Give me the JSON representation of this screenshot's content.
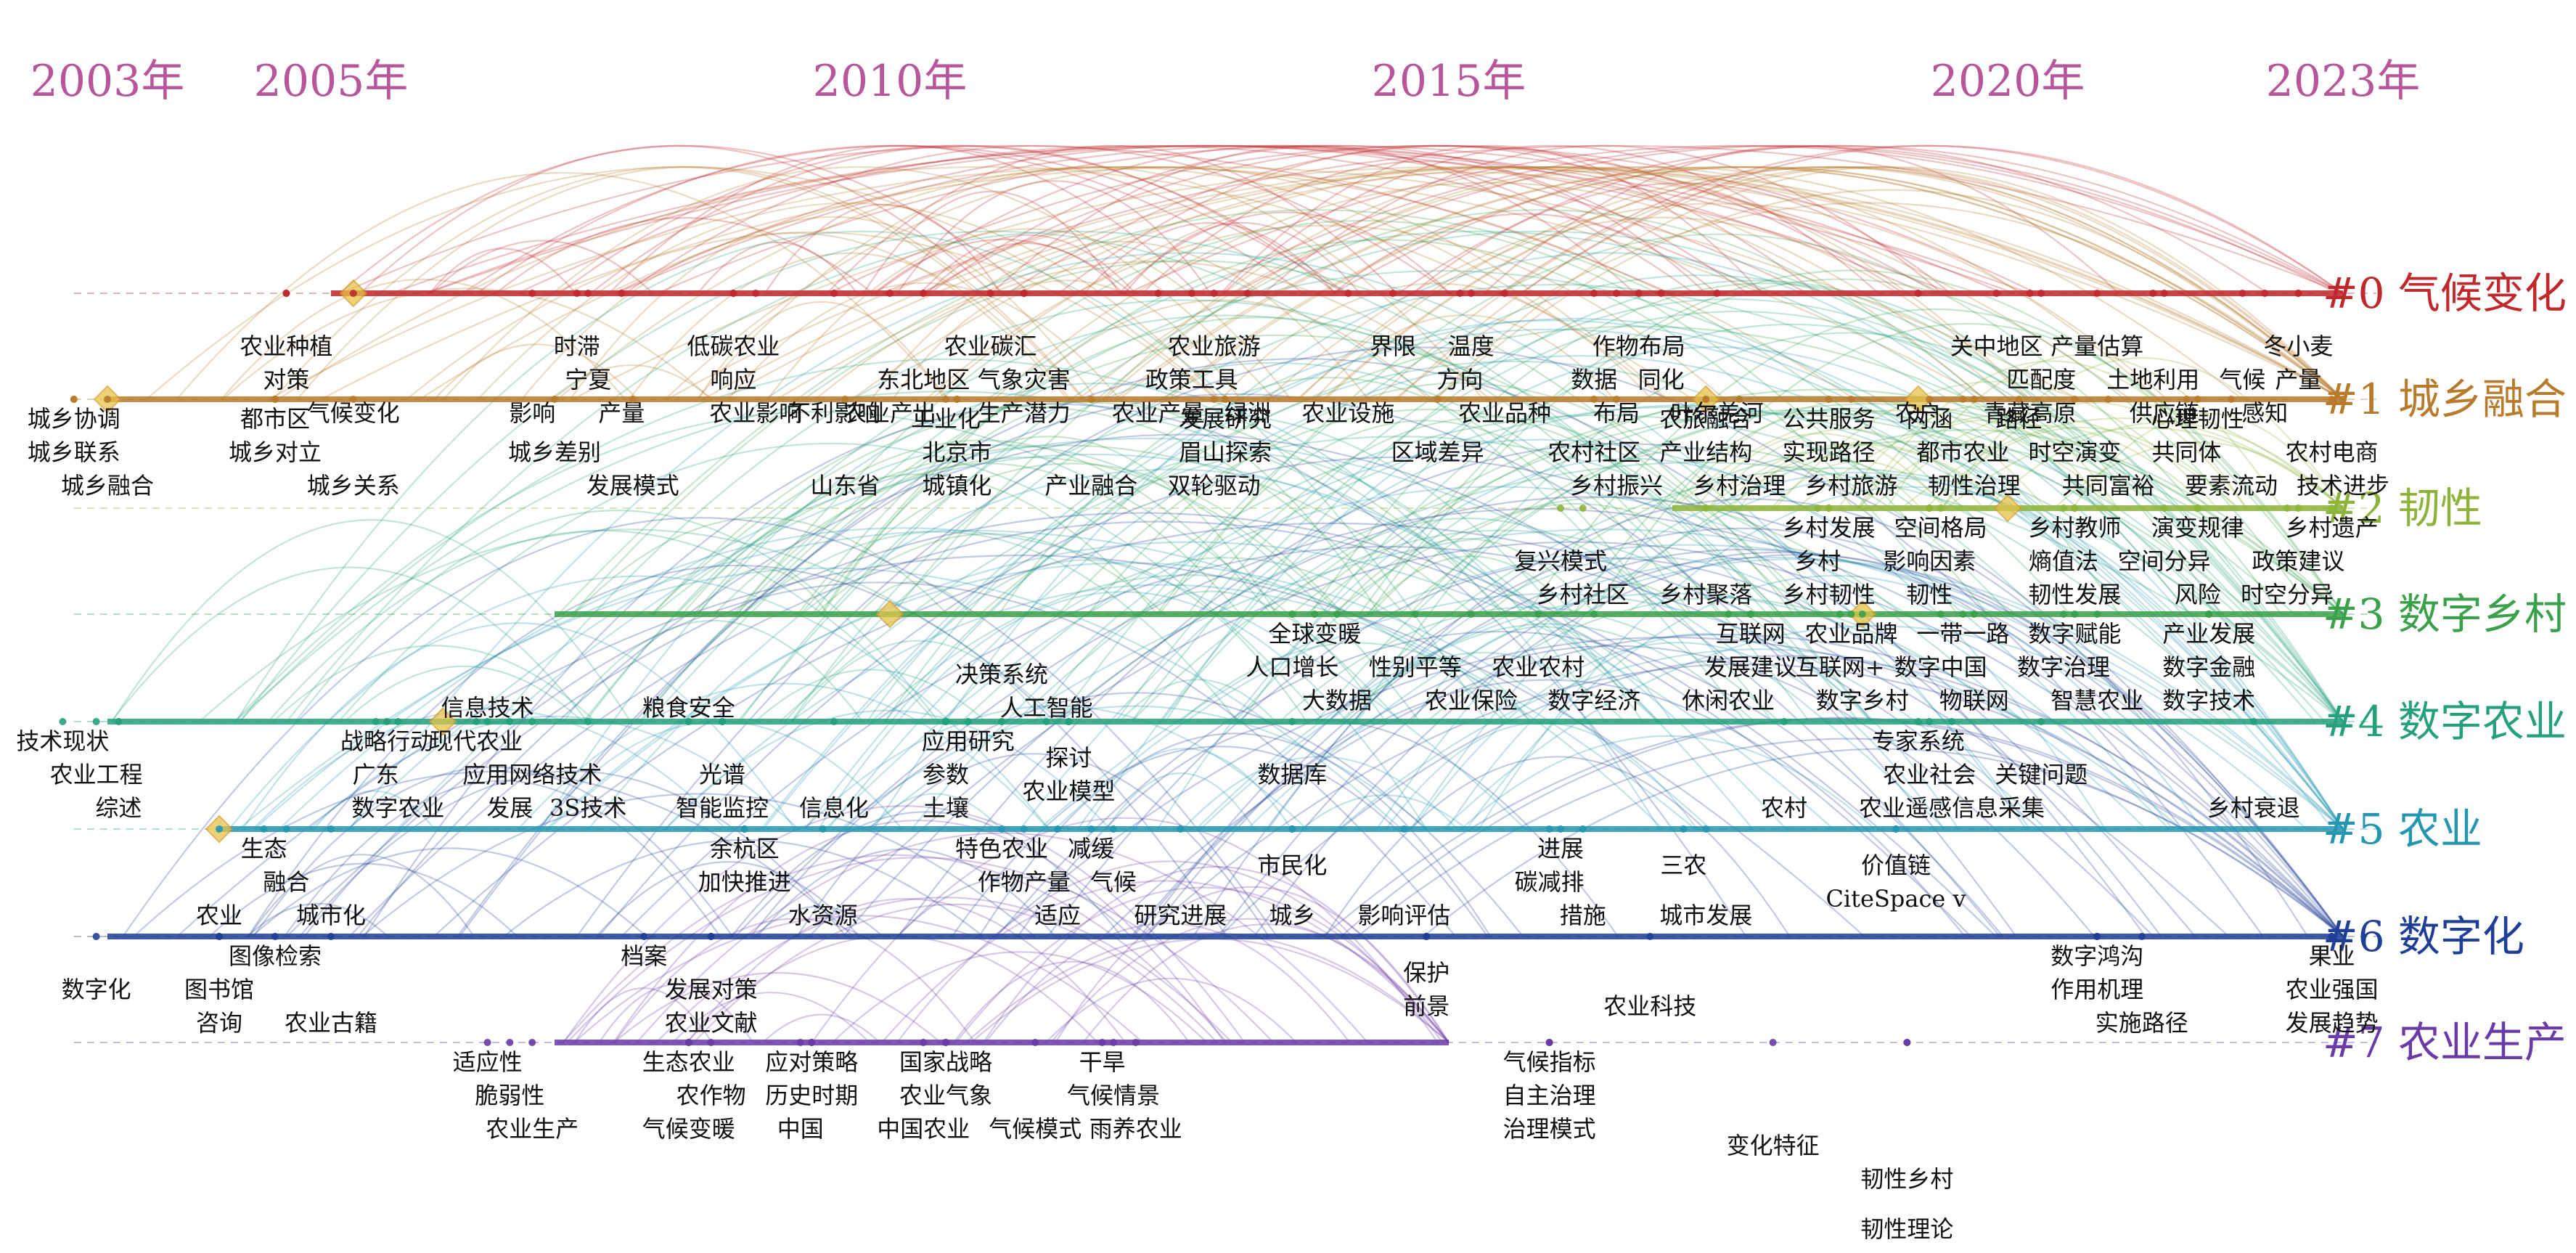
{
  "years": [
    {
      "label": "2003年",
      "year": 2003
    },
    {
      "label": "2005年",
      "year": 2005
    },
    {
      "label": "2010年",
      "year": 2010
    },
    {
      "label": "2015年",
      "year": 2015
    },
    {
      "label": "2020年",
      "year": 2020
    },
    {
      "label": "2023年",
      "year": 2023
    }
  ],
  "clusters": [
    {
      "label": "#0 气候变化",
      "color": "#c0282c",
      "start": 2005,
      "end": 2023
    },
    {
      "label": "#1 城乡融合",
      "color": "#b87a2b",
      "start": 2003,
      "end": 2023
    },
    {
      "label": "#2 韧性",
      "color": "#8db33a",
      "start": 2017,
      "end": 2023
    },
    {
      "label": "#3 数字乡村",
      "color": "#3aa04a",
      "start": 2007,
      "end": 2023
    },
    {
      "label": "#4 数字农业",
      "color": "#24a07c",
      "start": 2003,
      "end": 2023
    },
    {
      "label": "#5 农业",
      "color": "#2596b0",
      "start": 2004,
      "end": 2023
    },
    {
      "label": "#6 数字化",
      "color": "#1f3f96",
      "start": 2003,
      "end": 2023
    },
    {
      "label": "#7 农业生产",
      "color": "#6a3aa6",
      "start": 2007,
      "end": 2015
    }
  ],
  "keywords": [
    {
      "t": "农业种植",
      "c": 0,
      "y": 2004.6,
      "d": 1
    },
    {
      "t": "对策",
      "c": 0,
      "y": 2004.6,
      "d": 2
    },
    {
      "t": "气候变化",
      "c": 0,
      "y": 2005.2,
      "d": 3
    },
    {
      "t": "不利影响",
      "c": 0,
      "y": 2009.5,
      "d": 3
    },
    {
      "t": "时滞",
      "c": 0,
      "y": 2007.2,
      "d": 1
    },
    {
      "t": "宁夏",
      "c": 0,
      "y": 2007.3,
      "d": 2
    },
    {
      "t": "影响",
      "c": 0,
      "y": 2006.8,
      "d": 3
    },
    {
      "t": "产量",
      "c": 0,
      "y": 2007.6,
      "d": 3
    },
    {
      "t": "低碳农业",
      "c": 0,
      "y": 2008.6,
      "d": 1
    },
    {
      "t": "响应",
      "c": 0,
      "y": 2008.6,
      "d": 2
    },
    {
      "t": "农业影响",
      "c": 0,
      "y": 2008.8,
      "d": 3
    },
    {
      "t": "农业碳汇",
      "c": 0,
      "y": 2010.9,
      "d": 1
    },
    {
      "t": "东北地区",
      "c": 0,
      "y": 2010.3,
      "d": 2
    },
    {
      "t": "气象灾害",
      "c": 0,
      "y": 2011.2,
      "d": 2
    },
    {
      "t": "农业产出",
      "c": 0,
      "y": 2010.0,
      "d": 3
    },
    {
      "t": "生产潜力",
      "c": 0,
      "y": 2011.2,
      "d": 3
    },
    {
      "t": "农业旅游",
      "c": 0,
      "y": 2012.9,
      "d": 1
    },
    {
      "t": "政策工具",
      "c": 0,
      "y": 2012.7,
      "d": 2
    },
    {
      "t": "农业产量",
      "c": 0,
      "y": 2012.4,
      "d": 3
    },
    {
      "t": "绿洲",
      "c": 0,
      "y": 2013.2,
      "d": 3
    },
    {
      "t": "界限",
      "c": 0,
      "y": 2014.5,
      "d": 1
    },
    {
      "t": "温度",
      "c": 0,
      "y": 2015.2,
      "d": 1
    },
    {
      "t": "方向",
      "c": 0,
      "y": 2015.1,
      "d": 2
    },
    {
      "t": "农业设施",
      "c": 0,
      "y": 2014.1,
      "d": 3
    },
    {
      "t": "农业品种",
      "c": 0,
      "y": 2015.5,
      "d": 3
    },
    {
      "t": "作物布局",
      "c": 0,
      "y": 2016.7,
      "d": 1
    },
    {
      "t": "数据",
      "c": 0,
      "y": 2016.3,
      "d": 2
    },
    {
      "t": "同化",
      "c": 0,
      "y": 2016.9,
      "d": 2
    },
    {
      "t": "布局",
      "c": 0,
      "y": 2016.5,
      "d": 3
    },
    {
      "t": "叶尔羌河",
      "c": 0,
      "y": 2017.4,
      "d": 3
    },
    {
      "t": "关中地区",
      "c": 0,
      "y": 2019.9,
      "d": 1
    },
    {
      "t": "产量估算",
      "c": 0,
      "y": 2020.8,
      "d": 1
    },
    {
      "t": "匹配度",
      "c": 0,
      "y": 2020.3,
      "d": 2
    },
    {
      "t": "土地利用",
      "c": 0,
      "y": 2021.3,
      "d": 2
    },
    {
      "t": "气候",
      "c": 0,
      "y": 2022.1,
      "d": 2
    },
    {
      "t": "产量",
      "c": 0,
      "y": 2022.6,
      "d": 2
    },
    {
      "t": "冬小麦",
      "c": 0,
      "y": 2022.6,
      "d": 1
    },
    {
      "t": "农户",
      "c": 0,
      "y": 2019.2,
      "d": 3
    },
    {
      "t": "青藏高原",
      "c": 0,
      "y": 2020.2,
      "d": 3
    },
    {
      "t": "供应链",
      "c": 0,
      "y": 2021.4,
      "d": 3
    },
    {
      "t": "感知",
      "c": 0,
      "y": 2022.3,
      "d": 3
    },
    {
      "t": "城乡协调",
      "c": 1,
      "y": 2002.7,
      "d": 0
    },
    {
      "t": "城乡联系",
      "c": 1,
      "y": 2002.7,
      "d": 1
    },
    {
      "t": "城乡融合",
      "c": 1,
      "y": 2003.0,
      "d": 2
    },
    {
      "t": "都市区",
      "c": 1,
      "y": 2004.5,
      "d": 0
    },
    {
      "t": "城乡对立",
      "c": 1,
      "y": 2004.5,
      "d": 1
    },
    {
      "t": "城乡关系",
      "c": 1,
      "y": 2005.2,
      "d": 2
    },
    {
      "t": "城乡差别",
      "c": 1,
      "y": 2007.0,
      "d": 1
    },
    {
      "t": "发展模式",
      "c": 1,
      "y": 2007.7,
      "d": 2
    },
    {
      "t": "工业化",
      "c": 1,
      "y": 2010.5,
      "d": 0
    },
    {
      "t": "北京市",
      "c": 1,
      "y": 2010.6,
      "d": 1
    },
    {
      "t": "山东省",
      "c": 1,
      "y": 2009.6,
      "d": 2
    },
    {
      "t": "城镇化",
      "c": 1,
      "y": 2010.6,
      "d": 2
    },
    {
      "t": "产业融合",
      "c": 1,
      "y": 2011.8,
      "d": 2
    },
    {
      "t": "发展研究",
      "c": 1,
      "y": 2013.0,
      "d": 0
    },
    {
      "t": "眉山探索",
      "c": 1,
      "y": 2013.0,
      "d": 1
    },
    {
      "t": "双轮驱动",
      "c": 1,
      "y": 2012.9,
      "d": 2
    },
    {
      "t": "区域差异",
      "c": 1,
      "y": 2014.9,
      "d": 1
    },
    {
      "t": "农旅融合",
      "c": 1,
      "y": 2017.3,
      "d": 0
    },
    {
      "t": "公共服务",
      "c": 1,
      "y": 2018.4,
      "d": 0
    },
    {
      "t": "内涵",
      "c": 1,
      "y": 2019.3,
      "d": 0
    },
    {
      "t": "路径",
      "c": 1,
      "y": 2020.1,
      "d": 0
    },
    {
      "t": "心理韧性",
      "c": 1,
      "y": 2021.7,
      "d": 0
    },
    {
      "t": "农村社区",
      "c": 1,
      "y": 2016.3,
      "d": 1
    },
    {
      "t": "产业结构",
      "c": 1,
      "y": 2017.3,
      "d": 1
    },
    {
      "t": "实现路径",
      "c": 1,
      "y": 2018.4,
      "d": 1
    },
    {
      "t": "都市农业",
      "c": 1,
      "y": 2019.6,
      "d": 1
    },
    {
      "t": "时空演变",
      "c": 1,
      "y": 2020.6,
      "d": 1
    },
    {
      "t": "共同体",
      "c": 1,
      "y": 2021.6,
      "d": 1
    },
    {
      "t": "农村电商",
      "c": 1,
      "y": 2022.9,
      "d": 1
    },
    {
      "t": "乡村振兴",
      "c": 1,
      "y": 2016.5,
      "d": 2
    },
    {
      "t": "乡村治理",
      "c": 1,
      "y": 2017.6,
      "d": 2
    },
    {
      "t": "乡村旅游",
      "c": 1,
      "y": 2018.6,
      "d": 2
    },
    {
      "t": "韧性治理",
      "c": 1,
      "y": 2019.7,
      "d": 2
    },
    {
      "t": "共同富裕",
      "c": 1,
      "y": 2020.9,
      "d": 2
    },
    {
      "t": "要素流动",
      "c": 1,
      "y": 2022.0,
      "d": 2
    },
    {
      "t": "技术进步",
      "c": 1,
      "y": 2023.0,
      "d": 2
    },
    {
      "t": "复兴模式",
      "c": 2,
      "y": 2016.0,
      "d": 1
    },
    {
      "t": "乡村发展",
      "c": 2,
      "y": 2018.4,
      "d": 0
    },
    {
      "t": "空间格局",
      "c": 2,
      "y": 2019.4,
      "d": 0
    },
    {
      "t": "乡村教师",
      "c": 2,
      "y": 2020.6,
      "d": 0
    },
    {
      "t": "演变规律",
      "c": 2,
      "y": 2021.7,
      "d": 0
    },
    {
      "t": "乡村遗产",
      "c": 2,
      "y": 2022.9,
      "d": 0
    },
    {
      "t": "乡村",
      "c": 2,
      "y": 2018.3,
      "d": 1
    },
    {
      "t": "影响因素",
      "c": 2,
      "y": 2019.3,
      "d": 1
    },
    {
      "t": "熵值法",
      "c": 2,
      "y": 2020.5,
      "d": 1
    },
    {
      "t": "空间分异",
      "c": 2,
      "y": 2021.4,
      "d": 1
    },
    {
      "t": "政策建议",
      "c": 2,
      "y": 2022.6,
      "d": 1
    },
    {
      "t": "乡村社区",
      "c": 2,
      "y": 2016.2,
      "d": 2
    },
    {
      "t": "乡村聚落",
      "c": 2,
      "y": 2017.3,
      "d": 2
    },
    {
      "t": "乡村韧性",
      "c": 2,
      "y": 2018.4,
      "d": 2
    },
    {
      "t": "韧性",
      "c": 2,
      "y": 2019.3,
      "d": 2
    },
    {
      "t": "韧性发展",
      "c": 2,
      "y": 2020.6,
      "d": 2
    },
    {
      "t": "风险",
      "c": 2,
      "y": 2021.7,
      "d": 2
    },
    {
      "t": "时空分异",
      "c": 2,
      "y": 2022.5,
      "d": 2
    },
    {
      "t": "全球变暖",
      "c": 3,
      "y": 2013.8,
      "d": 0
    },
    {
      "t": "人口增长",
      "c": 3,
      "y": 2013.6,
      "d": 1
    },
    {
      "t": "性别平等",
      "c": 3,
      "y": 2014.7,
      "d": 1
    },
    {
      "t": "农业农村",
      "c": 3,
      "y": 2015.8,
      "d": 1
    },
    {
      "t": "大数据",
      "c": 3,
      "y": 2014.0,
      "d": 2
    },
    {
      "t": "农业保险",
      "c": 3,
      "y": 2015.2,
      "d": 2
    },
    {
      "t": "数字经济",
      "c": 3,
      "y": 2016.3,
      "d": 2
    },
    {
      "t": "互联网",
      "c": 3,
      "y": 2017.7,
      "d": 0
    },
    {
      "t": "农业品牌",
      "c": 3,
      "y": 2018.6,
      "d": 0
    },
    {
      "t": "一带一路",
      "c": 3,
      "y": 2019.6,
      "d": 0
    },
    {
      "t": "数字赋能",
      "c": 3,
      "y": 2020.6,
      "d": 0
    },
    {
      "t": "产业发展",
      "c": 3,
      "y": 2021.8,
      "d": 0
    },
    {
      "t": "发展建议",
      "c": 3,
      "y": 2017.7,
      "d": 1
    },
    {
      "t": "互联网+",
      "c": 3,
      "y": 2018.5,
      "d": 1
    },
    {
      "t": "数字中国",
      "c": 3,
      "y": 2019.4,
      "d": 1
    },
    {
      "t": "数字治理",
      "c": 3,
      "y": 2020.5,
      "d": 1
    },
    {
      "t": "数字金融",
      "c": 3,
      "y": 2021.8,
      "d": 1
    },
    {
      "t": "休闲农业",
      "c": 3,
      "y": 2017.5,
      "d": 2
    },
    {
      "t": "数字乡村",
      "c": 3,
      "y": 2018.7,
      "d": 2
    },
    {
      "t": "物联网",
      "c": 3,
      "y": 2019.7,
      "d": 2
    },
    {
      "t": "智慧农业",
      "c": 3,
      "y": 2020.8,
      "d": 2
    },
    {
      "t": "数字技术",
      "c": 3,
      "y": 2021.8,
      "d": 2
    },
    {
      "t": "信息技术",
      "c": 4,
      "y": 2006.4,
      "d": -1
    },
    {
      "t": "粮食安全",
      "c": 4,
      "y": 2008.2,
      "d": -1
    },
    {
      "t": "决策系统",
      "c": 4,
      "y": 2011.0,
      "d": -2
    },
    {
      "t": "人工智能",
      "c": 4,
      "y": 2011.4,
      "d": -1
    },
    {
      "t": "技术现状",
      "c": 4,
      "y": 2002.6,
      "d": 0
    },
    {
      "t": "农业工程",
      "c": 4,
      "y": 2002.9,
      "d": 1
    },
    {
      "t": "综述",
      "c": 4,
      "y": 2003.1,
      "d": 2
    },
    {
      "t": "战略行动",
      "c": 4,
      "y": 2005.5,
      "d": 0
    },
    {
      "t": "现代农业",
      "c": 4,
      "y": 2006.3,
      "d": 0
    },
    {
      "t": "广东",
      "c": 4,
      "y": 2005.4,
      "d": 1
    },
    {
      "t": "应用网络技术",
      "c": 4,
      "y": 2006.8,
      "d": 1
    },
    {
      "t": "数字农业",
      "c": 4,
      "y": 2005.6,
      "d": 2
    },
    {
      "t": "发展",
      "c": 4,
      "y": 2006.6,
      "d": 2
    },
    {
      "t": "3S技术",
      "c": 4,
      "y": 2007.3,
      "d": 2
    },
    {
      "t": "光谱",
      "c": 4,
      "y": 2008.5,
      "d": 1
    },
    {
      "t": "智能监控",
      "c": 4,
      "y": 2008.5,
      "d": 2
    },
    {
      "t": "信息化",
      "c": 4,
      "y": 2009.5,
      "d": 2
    },
    {
      "t": "应用研究",
      "c": 4,
      "y": 2010.7,
      "d": 0
    },
    {
      "t": "参数",
      "c": 4,
      "y": 2010.5,
      "d": 1
    },
    {
      "t": "土壤",
      "c": 4,
      "y": 2010.5,
      "d": 2
    },
    {
      "t": "探讨",
      "c": 4,
      "y": 2011.6,
      "d": 0.5
    },
    {
      "t": "农业模型",
      "c": 4,
      "y": 2011.6,
      "d": 1.5
    },
    {
      "t": "数据库",
      "c": 4,
      "y": 2013.6,
      "d": 1
    },
    {
      "t": "专家系统",
      "c": 4,
      "y": 2019.2,
      "d": 0
    },
    {
      "t": "农业社会",
      "c": 4,
      "y": 2019.3,
      "d": 1
    },
    {
      "t": "关键问题",
      "c": 4,
      "y": 2020.3,
      "d": 1
    },
    {
      "t": "农村",
      "c": 4,
      "y": 2018.0,
      "d": 2
    },
    {
      "t": "农业遥感信息采集",
      "c": 4,
      "y": 2019.5,
      "d": 2
    },
    {
      "t": "乡村衰退",
      "c": 4,
      "y": 2022.2,
      "d": 2
    },
    {
      "t": "生态",
      "c": 5,
      "y": 2004.4,
      "d": 0
    },
    {
      "t": "融合",
      "c": 5,
      "y": 2004.6,
      "d": 1
    },
    {
      "t": "农业",
      "c": 5,
      "y": 2004.0,
      "d": 2
    },
    {
      "t": "城市化",
      "c": 5,
      "y": 2005.0,
      "d": 2
    },
    {
      "t": "余杭区",
      "c": 5,
      "y": 2008.7,
      "d": 0
    },
    {
      "t": "加快推进",
      "c": 5,
      "y": 2008.7,
      "d": 1
    },
    {
      "t": "水资源",
      "c": 5,
      "y": 2009.4,
      "d": 2
    },
    {
      "t": "特色农业",
      "c": 5,
      "y": 2011.0,
      "d": 0
    },
    {
      "t": "减缓",
      "c": 5,
      "y": 2011.8,
      "d": 0
    },
    {
      "t": "作物产量",
      "c": 5,
      "y": 2011.2,
      "d": 1
    },
    {
      "t": "气候",
      "c": 5,
      "y": 2012.0,
      "d": 1
    },
    {
      "t": "适应",
      "c": 5,
      "y": 2011.5,
      "d": 2
    },
    {
      "t": "研究进展",
      "c": 5,
      "y": 2012.6,
      "d": 2
    },
    {
      "t": "市民化",
      "c": 5,
      "y": 2013.6,
      "d": 0.5
    },
    {
      "t": "城乡",
      "c": 5,
      "y": 2013.6,
      "d": 2
    },
    {
      "t": "影响评估",
      "c": 5,
      "y": 2014.6,
      "d": 2
    },
    {
      "t": "进展",
      "c": 5,
      "y": 2016.0,
      "d": 0
    },
    {
      "t": "碳减排",
      "c": 5,
      "y": 2015.9,
      "d": 1
    },
    {
      "t": "措施",
      "c": 5,
      "y": 2016.2,
      "d": 2
    },
    {
      "t": "三农",
      "c": 5,
      "y": 2017.1,
      "d": 0.5
    },
    {
      "t": "城市发展",
      "c": 5,
      "y": 2017.3,
      "d": 2
    },
    {
      "t": "价值链",
      "c": 5,
      "y": 2019.0,
      "d": 0.5
    },
    {
      "t": "CiteSpace v",
      "c": 5,
      "y": 2019.0,
      "d": 1.5
    },
    {
      "t": "数字化",
      "c": 6,
      "y": 2002.9,
      "d": 1
    },
    {
      "t": "图像检索",
      "c": 6,
      "y": 2004.5,
      "d": 0
    },
    {
      "t": "图书馆",
      "c": 6,
      "y": 2004.0,
      "d": 1
    },
    {
      "t": "咨询",
      "c": 6,
      "y": 2004.0,
      "d": 2
    },
    {
      "t": "农业古籍",
      "c": 6,
      "y": 2005.0,
      "d": 2
    },
    {
      "t": "档案",
      "c": 6,
      "y": 2007.8,
      "d": 0
    },
    {
      "t": "发展对策",
      "c": 6,
      "y": 2008.4,
      "d": 1
    },
    {
      "t": "农业文献",
      "c": 6,
      "y": 2008.4,
      "d": 2
    },
    {
      "t": "保护",
      "c": 6,
      "y": 2014.8,
      "d": 0.5
    },
    {
      "t": "前景",
      "c": 6,
      "y": 2014.8,
      "d": 1.5
    },
    {
      "t": "农业科技",
      "c": 6,
      "y": 2016.8,
      "d": 1.5
    },
    {
      "t": "数字鸿沟",
      "c": 6,
      "y": 2020.8,
      "d": 0
    },
    {
      "t": "作用机理",
      "c": 6,
      "y": 2020.8,
      "d": 1
    },
    {
      "t": "实施路径",
      "c": 6,
      "y": 2021.2,
      "d": 2
    },
    {
      "t": "果业",
      "c": 6,
      "y": 2022.9,
      "d": 0
    },
    {
      "t": "农业强国",
      "c": 6,
      "y": 2022.9,
      "d": 1
    },
    {
      "t": "发展趋势",
      "c": 6,
      "y": 2022.9,
      "d": 2
    },
    {
      "t": "适应性",
      "c": 7,
      "y": 2006.4,
      "d": 0
    },
    {
      "t": "脆弱性",
      "c": 7,
      "y": 2006.6,
      "d": 1
    },
    {
      "t": "农业生产",
      "c": 7,
      "y": 2006.8,
      "d": 2
    },
    {
      "t": "生态农业",
      "c": 7,
      "y": 2008.2,
      "d": 0
    },
    {
      "t": "农作物",
      "c": 7,
      "y": 2008.4,
      "d": 1
    },
    {
      "t": "气候变暖",
      "c": 7,
      "y": 2008.2,
      "d": 2
    },
    {
      "t": "应对策略",
      "c": 7,
      "y": 2009.3,
      "d": 0
    },
    {
      "t": "历史时期",
      "c": 7,
      "y": 2009.3,
      "d": 1
    },
    {
      "t": "中国",
      "c": 7,
      "y": 2009.2,
      "d": 2
    },
    {
      "t": "国家战略",
      "c": 7,
      "y": 2010.5,
      "d": 0
    },
    {
      "t": "农业气象",
      "c": 7,
      "y": 2010.5,
      "d": 1
    },
    {
      "t": "中国农业",
      "c": 7,
      "y": 2010.3,
      "d": 2
    },
    {
      "t": "气候模式",
      "c": 7,
      "y": 2011.3,
      "d": 2
    },
    {
      "t": "干旱",
      "c": 7,
      "y": 2011.9,
      "d": 0
    },
    {
      "t": "气候情景",
      "c": 7,
      "y": 2012.0,
      "d": 1
    },
    {
      "t": "雨养农业",
      "c": 7,
      "y": 2012.2,
      "d": 2
    },
    {
      "t": "气候指标",
      "c": 7,
      "y": 2015.9,
      "d": 0
    },
    {
      "t": "自主治理",
      "c": 7,
      "y": 2015.9,
      "d": 1
    },
    {
      "t": "治理模式",
      "c": 7,
      "y": 2015.9,
      "d": 2
    },
    {
      "t": "变化特征",
      "c": 7,
      "y": 2017.9,
      "d": 2.5
    },
    {
      "t": "韧性乡村",
      "c": 7,
      "y": 2019.1,
      "d": 3.5
    },
    {
      "t": "韧性理论",
      "c": 7,
      "y": 2019.1,
      "d": 5
    }
  ]
}
